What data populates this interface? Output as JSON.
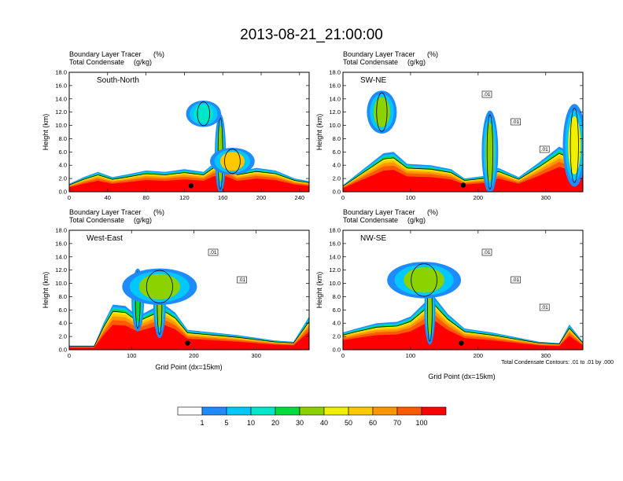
{
  "figure": {
    "title": "2013-08-21_21:00:00",
    "var1_label": "Boundary Layer Tracer",
    "var1_units": "(%)",
    "var2_label": "Total Condensate",
    "var2_units": "(g/kg)",
    "xlabel": "Grid Point (dx=15km)",
    "ylabel": "Height (km)",
    "contour_note": "Total Condensate Contours: .01 to .01 by .000",
    "colorbar": {
      "levels": [
        "1",
        "5",
        "10",
        "20",
        "30",
        "40",
        "50",
        "60",
        "70",
        "100"
      ],
      "colors": [
        "#ffffff",
        "#1e8cff",
        "#00c8ff",
        "#00e6c8",
        "#00dc3c",
        "#8cd200",
        "#f0f000",
        "#ffc800",
        "#ff9600",
        "#ff5a00",
        "#ff0000"
      ]
    }
  },
  "chart_data": [
    {
      "type": "heatmap",
      "name": "South-North",
      "ylabel": "Height (km)",
      "ylim": [
        0,
        18
      ],
      "yticks": [
        "0.0",
        "2.0",
        "4.0",
        "6.0",
        "8.0",
        "10.0",
        "12.0",
        "14.0",
        "16.0",
        "18.0"
      ],
      "xlim": [
        0,
        250
      ],
      "xticks": [
        "0",
        "40",
        "80",
        "120",
        "160",
        "200",
        "240"
      ],
      "xtick_values": [
        0,
        40,
        80,
        120,
        160,
        200,
        240
      ],
      "boundary_layer_top_km": [
        [
          0,
          1.2
        ],
        [
          15,
          2.2
        ],
        [
          30,
          3.0
        ],
        [
          45,
          2.2
        ],
        [
          60,
          2.6
        ],
        [
          80,
          3.2
        ],
        [
          100,
          3.0
        ],
        [
          120,
          3.4
        ],
        [
          140,
          3.0
        ],
        [
          150,
          4.2
        ],
        [
          160,
          4.6
        ],
        [
          175,
          3.0
        ],
        [
          195,
          3.6
        ],
        [
          215,
          3.2
        ],
        [
          235,
          2.0
        ],
        [
          250,
          1.6
        ]
      ],
      "condensate_plumes": [
        {
          "x": [
            155,
            160
          ],
          "top_km": 11.5,
          "base_km": 0.0,
          "peak": "30"
        },
        {
          "x": [
            125,
            155
          ],
          "top_km": 13.5,
          "base_km": 10.0,
          "peak": "10"
        },
        {
          "x": [
            150,
            190
          ],
          "top_km": 6.4,
          "base_km": 2.8,
          "peak": "50"
        }
      ],
      "contour_labels": [],
      "marker": {
        "x": 127,
        "y_km": 0.9
      }
    },
    {
      "type": "heatmap",
      "name": "SW-NE",
      "ylabel": "Height (km)",
      "ylim": [
        0,
        18
      ],
      "yticks": [
        "0.0",
        "2.0",
        "4.0",
        "6.0",
        "8.0",
        "10.0",
        "12.0",
        "14.0",
        "16.0",
        "18.0"
      ],
      "xlim": [
        0,
        355
      ],
      "xticks": [
        "0",
        "100",
        "200",
        "300"
      ],
      "xtick_values": [
        0,
        100,
        200,
        300
      ],
      "boundary_layer_top_km": [
        [
          0,
          1.0
        ],
        [
          20,
          2.6
        ],
        [
          40,
          4.2
        ],
        [
          60,
          5.8
        ],
        [
          75,
          6.0
        ],
        [
          95,
          4.2
        ],
        [
          130,
          4.0
        ],
        [
          160,
          3.4
        ],
        [
          180,
          2.0
        ],
        [
          210,
          2.4
        ],
        [
          230,
          3.6
        ],
        [
          260,
          2.2
        ],
        [
          290,
          4.4
        ],
        [
          320,
          6.8
        ],
        [
          340,
          5.8
        ],
        [
          355,
          4.6
        ]
      ],
      "condensate_plumes": [
        {
          "x": [
            210,
            225
          ],
          "top_km": 12.0,
          "base_km": 0.0,
          "peak": "30"
        },
        {
          "x": [
            40,
            75
          ],
          "top_km": 15.0,
          "base_km": 9.0,
          "peak": "30"
        },
        {
          "x": [
            330,
            355
          ],
          "top_km": 13.0,
          "base_km": 1.0,
          "peak": "40"
        }
      ],
      "contour_labels": [
        ".01",
        ".01",
        ".01"
      ],
      "marker": {
        "x": 178,
        "y_km": 1.0
      }
    },
    {
      "type": "heatmap",
      "name": "West-East",
      "ylabel": "Height (km)",
      "ylim": [
        0,
        18
      ],
      "yticks": [
        "0.0",
        "2.0",
        "4.0",
        "6.0",
        "8.0",
        "10.0",
        "12.0",
        "14.0",
        "16.0",
        "18.0"
      ],
      "xlim": [
        0,
        385
      ],
      "xticks": [
        "0",
        "100",
        "200",
        "300"
      ],
      "xtick_values": [
        0,
        100,
        200,
        300
      ],
      "boundary_layer_top_km": [
        [
          0,
          0.6
        ],
        [
          40,
          0.6
        ],
        [
          55,
          4.0
        ],
        [
          70,
          6.8
        ],
        [
          90,
          6.6
        ],
        [
          110,
          5.0
        ],
        [
          130,
          6.0
        ],
        [
          150,
          7.0
        ],
        [
          170,
          5.6
        ],
        [
          190,
          3.0
        ],
        [
          230,
          2.6
        ],
        [
          270,
          2.2
        ],
        [
          300,
          1.8
        ],
        [
          330,
          1.4
        ],
        [
          360,
          1.2
        ],
        [
          385,
          5.0
        ]
      ],
      "condensate_plumes": [
        {
          "x": [
            105,
            115
          ],
          "top_km": 12.0,
          "base_km": 3.0,
          "peak": "20"
        },
        {
          "x": [
            140,
            150
          ],
          "top_km": 12.0,
          "base_km": 2.0,
          "peak": "30"
        },
        {
          "x": [
            90,
            200
          ],
          "top_km": 12.0,
          "base_km": 7.0,
          "peak": "30"
        }
      ],
      "contour_labels": [
        ".01",
        ".01"
      ],
      "marker": {
        "x": 190,
        "y_km": 1.0
      }
    },
    {
      "type": "heatmap",
      "name": "NW-SE",
      "ylabel": "Height (km)",
      "ylim": [
        0,
        18
      ],
      "yticks": [
        "0.0",
        "2.0",
        "4.0",
        "6.0",
        "8.0",
        "10.0",
        "12.0",
        "14.0",
        "16.0",
        "18.0"
      ],
      "xlim": [
        0,
        355
      ],
      "xticks": [
        "0",
        "100",
        "200",
        "300"
      ],
      "xtick_values": [
        0,
        100,
        200,
        300
      ],
      "boundary_layer_top_km": [
        [
          0,
          2.6
        ],
        [
          20,
          3.2
        ],
        [
          50,
          4.0
        ],
        [
          80,
          4.2
        ],
        [
          100,
          5.0
        ],
        [
          120,
          7.0
        ],
        [
          135,
          8.0
        ],
        [
          155,
          5.4
        ],
        [
          180,
          3.2
        ],
        [
          220,
          2.6
        ],
        [
          260,
          1.8
        ],
        [
          290,
          1.2
        ],
        [
          320,
          1.0
        ],
        [
          335,
          3.8
        ],
        [
          355,
          1.2
        ]
      ],
      "condensate_plumes": [
        {
          "x": [
            125,
            132
          ],
          "top_km": 11.0,
          "base_km": 1.0,
          "peak": "30"
        },
        {
          "x": [
            70,
            170
          ],
          "top_km": 13.0,
          "base_km": 8.0,
          "peak": "30"
        }
      ],
      "contour_labels": [
        ".01",
        ".01",
        ".01"
      ],
      "marker": {
        "x": 175,
        "y_km": 1.0
      }
    }
  ]
}
